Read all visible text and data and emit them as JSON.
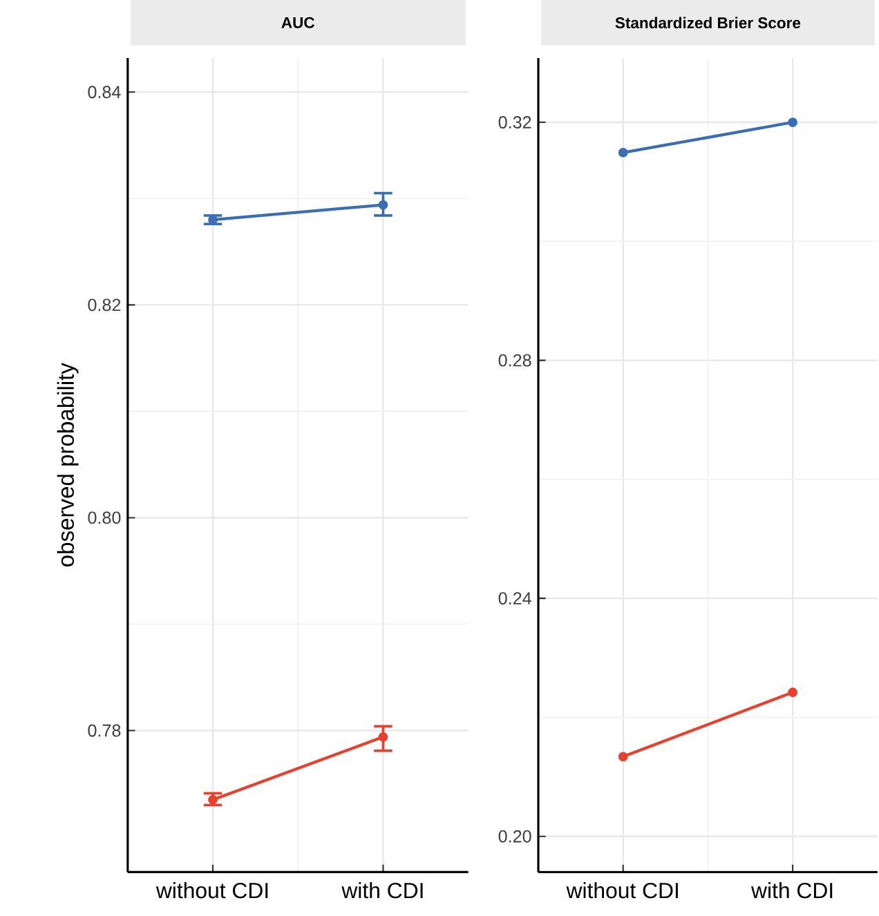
{
  "chart_data": [
    {
      "type": "line",
      "title": "AUC",
      "ylabel": "observed probability",
      "categories": [
        "without CDI",
        "with CDI"
      ],
      "ylim": [
        0.7667,
        0.8432
      ],
      "yticks": [
        {
          "value": 0.78,
          "label": "0.78"
        },
        {
          "value": 0.8,
          "label": "0.80"
        },
        0.82,
        0.84
      ],
      "grid": true,
      "marker": "circle",
      "line_style": "solid",
      "series": [
        {
          "color": "#3b6db5",
          "values": [
            0.828,
            0.8294
          ],
          "errors": [
            [
              0.8276,
              0.8284
            ],
            [
              0.8284,
              0.8305
            ]
          ]
        },
        {
          "color": "#e8402e",
          "values": [
            0.7735,
            0.7794
          ],
          "errors": [
            [
              0.773,
              0.7741
            ],
            [
              0.7781,
              0.7804
            ]
          ]
        }
      ]
    },
    {
      "type": "line",
      "title": "Standardized Brier Score",
      "categories": [
        "without CDI",
        "with CDI"
      ],
      "ylim": [
        0.194,
        0.3308
      ],
      "yticks": [
        {
          "value": 0.2,
          "label": "0.20"
        },
        0.24,
        {
          "value": 0.28,
          "label": "0.28"
        },
        0.32
      ],
      "grid": true,
      "marker": "circle",
      "line_style": "solid",
      "series": [
        {
          "color": "#3b6db5",
          "values": [
            0.3149,
            0.32
          ]
        },
        {
          "color": "#e8402e",
          "values": [
            0.2134,
            0.2242
          ]
        }
      ]
    }
  ]
}
